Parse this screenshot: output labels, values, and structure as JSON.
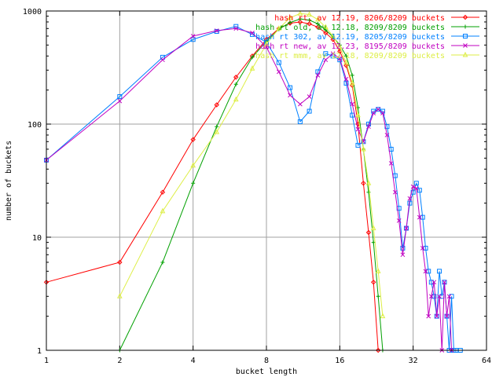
{
  "chart_data": {
    "type": "line",
    "title": "",
    "xlabel": "bucket length",
    "ylabel": "number of buckets",
    "xscale": "log2",
    "yscale": "log10",
    "xlim": [
      1,
      64
    ],
    "ylim": [
      1,
      1000
    ],
    "grid": true,
    "legend_position": "top-right",
    "x_ticks": [
      {
        "value": 1,
        "label": "1"
      },
      {
        "value": 2,
        "label": "2"
      },
      {
        "value": 4,
        "label": "4"
      },
      {
        "value": 8,
        "label": "8"
      },
      {
        "value": 16,
        "label": "16"
      },
      {
        "value": 32,
        "label": "32"
      },
      {
        "value": 64,
        "label": "64"
      }
    ],
    "y_ticks": [
      {
        "value": 1,
        "label": "1"
      },
      {
        "value": 10,
        "label": "10"
      },
      {
        "value": 100,
        "label": "100"
      },
      {
        "value": 1000,
        "label": "1000"
      }
    ],
    "series": [
      {
        "name": "hash rt, av 12.19, 8206/8209 buckets",
        "color": "#ff0000",
        "marker": "diamond",
        "points": [
          [
            1,
            4
          ],
          [
            2,
            6
          ],
          [
            3,
            25
          ],
          [
            4,
            73
          ],
          [
            5,
            148
          ],
          [
            6,
            260
          ],
          [
            7,
            400
          ],
          [
            8,
            560
          ],
          [
            9,
            700
          ],
          [
            10,
            780
          ],
          [
            11,
            800
          ],
          [
            12,
            770
          ],
          [
            13,
            720
          ],
          [
            14,
            640
          ],
          [
            15,
            560
          ],
          [
            16,
            440
          ],
          [
            17,
            330
          ],
          [
            18,
            220
          ],
          [
            19,
            100
          ],
          [
            20,
            30
          ],
          [
            21,
            11
          ],
          [
            22,
            4
          ],
          [
            23,
            1
          ]
        ]
      },
      {
        "name": "hash rt old, av 12.18, 8209/8209 buckets",
        "color": "#00a000",
        "marker": "plus",
        "points": [
          [
            2,
            1
          ],
          [
            3,
            6
          ],
          [
            4,
            30
          ],
          [
            5,
            95
          ],
          [
            6,
            225
          ],
          [
            7,
            390
          ],
          [
            8,
            540
          ],
          [
            9,
            690
          ],
          [
            10,
            790
          ],
          [
            11,
            850
          ],
          [
            12,
            830
          ],
          [
            13,
            770
          ],
          [
            14,
            680
          ],
          [
            15,
            590
          ],
          [
            16,
            500
          ],
          [
            17,
            400
          ],
          [
            18,
            270
          ],
          [
            19,
            140
          ],
          [
            20,
            60
          ],
          [
            21,
            25
          ],
          [
            22,
            9
          ],
          [
            23,
            3
          ],
          [
            24,
            1
          ]
        ]
      },
      {
        "name": "hash rt 302, av 12.19, 8205/8209 buckets",
        "color": "#0080ff",
        "marker": "square",
        "points": [
          [
            1,
            48
          ],
          [
            2,
            175
          ],
          [
            3,
            390
          ],
          [
            4,
            560
          ],
          [
            5,
            660
          ],
          [
            6,
            730
          ],
          [
            7,
            620
          ],
          [
            8,
            530
          ],
          [
            9,
            350
          ],
          [
            10,
            210
          ],
          [
            11,
            105
          ],
          [
            12,
            130
          ],
          [
            13,
            290
          ],
          [
            14,
            420
          ],
          [
            15,
            400
          ],
          [
            16,
            370
          ],
          [
            17,
            230
          ],
          [
            18,
            120
          ],
          [
            19,
            65
          ],
          [
            20,
            70
          ],
          [
            21,
            100
          ],
          [
            22,
            130
          ],
          [
            23,
            135
          ],
          [
            24,
            130
          ],
          [
            25,
            95
          ],
          [
            26,
            60
          ],
          [
            27,
            35
          ],
          [
            28,
            18
          ],
          [
            29,
            8
          ],
          [
            30,
            12
          ],
          [
            31,
            20
          ],
          [
            32,
            25
          ],
          [
            33,
            30
          ],
          [
            34,
            26
          ],
          [
            35,
            15
          ],
          [
            36,
            8
          ],
          [
            37,
            5
          ],
          [
            38,
            4
          ],
          [
            39,
            3
          ],
          [
            40,
            2
          ],
          [
            41,
            5
          ],
          [
            42,
            3
          ],
          [
            43,
            4
          ],
          [
            44,
            2
          ],
          [
            45,
            1
          ],
          [
            46,
            3
          ],
          [
            47,
            1
          ],
          [
            48,
            1
          ],
          [
            50,
            1
          ]
        ]
      },
      {
        "name": "hash rt new, av 12.23, 8195/8209 buckets",
        "color": "#c000c0",
        "marker": "cross",
        "points": [
          [
            1,
            48
          ],
          [
            2,
            160
          ],
          [
            3,
            370
          ],
          [
            4,
            600
          ],
          [
            5,
            670
          ],
          [
            6,
            700
          ],
          [
            7,
            640
          ],
          [
            8,
            480
          ],
          [
            9,
            290
          ],
          [
            10,
            180
          ],
          [
            11,
            150
          ],
          [
            12,
            175
          ],
          [
            13,
            270
          ],
          [
            14,
            370
          ],
          [
            15,
            420
          ],
          [
            16,
            380
          ],
          [
            17,
            250
          ],
          [
            18,
            150
          ],
          [
            19,
            90
          ],
          [
            20,
            70
          ],
          [
            21,
            95
          ],
          [
            22,
            125
          ],
          [
            23,
            135
          ],
          [
            24,
            125
          ],
          [
            25,
            80
          ],
          [
            26,
            45
          ],
          [
            27,
            25
          ],
          [
            28,
            14
          ],
          [
            29,
            7
          ],
          [
            30,
            12
          ],
          [
            31,
            22
          ],
          [
            32,
            28
          ],
          [
            33,
            27
          ],
          [
            34,
            15
          ],
          [
            35,
            8
          ],
          [
            36,
            5
          ],
          [
            37,
            2
          ],
          [
            38,
            3
          ],
          [
            39,
            4
          ],
          [
            40,
            2
          ],
          [
            41,
            3
          ],
          [
            42,
            1
          ],
          [
            43,
            4
          ],
          [
            44,
            2
          ],
          [
            45,
            3
          ],
          [
            46,
            1
          ]
        ]
      },
      {
        "name": "hash rt mmm, av 12.18, 8209/8209 buckets",
        "color": "#ddee44",
        "marker": "triangle",
        "points": [
          [
            2,
            3
          ],
          [
            3,
            17
          ],
          [
            4,
            43
          ],
          [
            5,
            85
          ],
          [
            6,
            165
          ],
          [
            7,
            310
          ],
          [
            8,
            510
          ],
          [
            9,
            700
          ],
          [
            10,
            870
          ],
          [
            11,
            950
          ],
          [
            12,
            930
          ],
          [
            13,
            840
          ],
          [
            14,
            720
          ],
          [
            15,
            600
          ],
          [
            16,
            480
          ],
          [
            17,
            350
          ],
          [
            18,
            230
          ],
          [
            19,
            120
          ],
          [
            20,
            60
          ],
          [
            21,
            30
          ],
          [
            22,
            12
          ],
          [
            23,
            5
          ],
          [
            24,
            2
          ]
        ]
      }
    ]
  }
}
